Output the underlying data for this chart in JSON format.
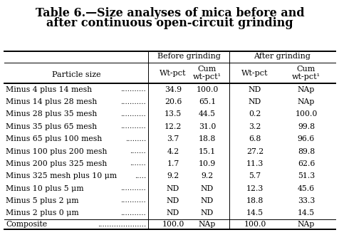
{
  "title_line1": "Table 6.—Size analyses of mica before and",
  "title_line2": "after continuous open-circuit grinding",
  "col_headers_top": [
    "Before grinding",
    "After grinding"
  ],
  "col_headers_mid": [
    "Wt-pct",
    "Cum\nwt-pct¹",
    "Wt-pct",
    "Cum\nwt-pct¹"
  ],
  "row_header": "Particle size",
  "rows": [
    [
      "Minus 4 plus 14 mesh",
      "...........",
      "34.9",
      "100.0",
      "ND",
      "NAp"
    ],
    [
      "Minus 14 plus 28 mesh",
      "...........",
      "20.6",
      "65.1",
      "ND",
      "NAp"
    ],
    [
      "Minus 28 plus 35 mesh",
      "...........",
      "13.5",
      "44.5",
      "0.2",
      "100.0"
    ],
    [
      "Minus 35 plus 65 mesh",
      "...........",
      "12.2",
      "31.0",
      "3.2",
      "99.8"
    ],
    [
      "Minus 65 plus 100 mesh",
      ".........",
      "3.7",
      "18.8",
      "6.8",
      "96.6"
    ],
    [
      "Minus 100 plus 200 mesh",
      ".......",
      "4.2",
      "15.1",
      "27.2",
      "89.8"
    ],
    [
      "Minus 200 plus 325 mesh",
      ".......",
      "1.7",
      "10.9",
      "11.3",
      "62.6"
    ],
    [
      "Minus 325 mesh plus 10 μm",
      ".....",
      "9.2",
      "9.2",
      "5.7",
      "51.3"
    ],
    [
      "Minus 10 plus 5 μm",
      "...........",
      "ND",
      "ND",
      "12.3",
      "45.6"
    ],
    [
      "Minus 5 plus 2 μm",
      "...........",
      "ND",
      "ND",
      "18.8",
      "33.3"
    ],
    [
      "Minus 2 plus 0 μm",
      "...........",
      "ND",
      "ND",
      "14.5",
      "14.5"
    ]
  ],
  "composite": [
    "Composite",
    ".....................",
    "100.0",
    "NAp",
    "100.0",
    "NAp"
  ],
  "bg_color": "#ffffff",
  "text_color": "#000000",
  "title_fontsize": 11.5,
  "header_fontsize": 8.0,
  "body_fontsize": 7.8
}
